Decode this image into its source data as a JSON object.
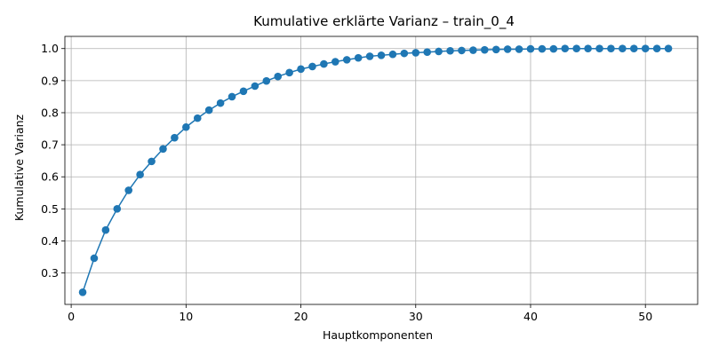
{
  "chart_data": {
    "type": "line",
    "title": "Kumulative erklärte Varianz – train_0_4",
    "xlabel": "Hauptkomponenten",
    "ylabel": "Kumulative Varianz",
    "xlim": [
      -0.55,
      54.55
    ],
    "ylim": [
      0.202,
      1.038
    ],
    "xticks": [
      0,
      10,
      20,
      30,
      40,
      50
    ],
    "yticks": [
      0.3,
      0.4,
      0.5,
      0.6,
      0.7,
      0.8,
      0.9,
      1.0
    ],
    "grid": true,
    "line_color": "#1f77b4",
    "marker": "circle",
    "x": [
      1,
      2,
      3,
      4,
      5,
      6,
      7,
      8,
      9,
      10,
      11,
      12,
      13,
      14,
      15,
      16,
      17,
      18,
      19,
      20,
      21,
      22,
      23,
      24,
      25,
      26,
      27,
      28,
      29,
      30,
      31,
      32,
      33,
      34,
      35,
      36,
      37,
      38,
      39,
      40,
      41,
      42,
      43,
      44,
      45,
      46,
      47,
      48,
      49,
      50,
      51,
      52
    ],
    "y": [
      0.24,
      0.346,
      0.434,
      0.5,
      0.558,
      0.607,
      0.648,
      0.687,
      0.722,
      0.755,
      0.783,
      0.808,
      0.83,
      0.85,
      0.867,
      0.883,
      0.899,
      0.913,
      0.925,
      0.936,
      0.944,
      0.952,
      0.959,
      0.965,
      0.971,
      0.976,
      0.979,
      0.982,
      0.985,
      0.987,
      0.989,
      0.991,
      0.993,
      0.994,
      0.995,
      0.996,
      0.997,
      0.998,
      0.998,
      0.999,
      0.999,
      0.999,
      1.0,
      1.0,
      1.0,
      1.0,
      1.0,
      1.0,
      1.0,
      1.0,
      1.0,
      1.0
    ]
  }
}
